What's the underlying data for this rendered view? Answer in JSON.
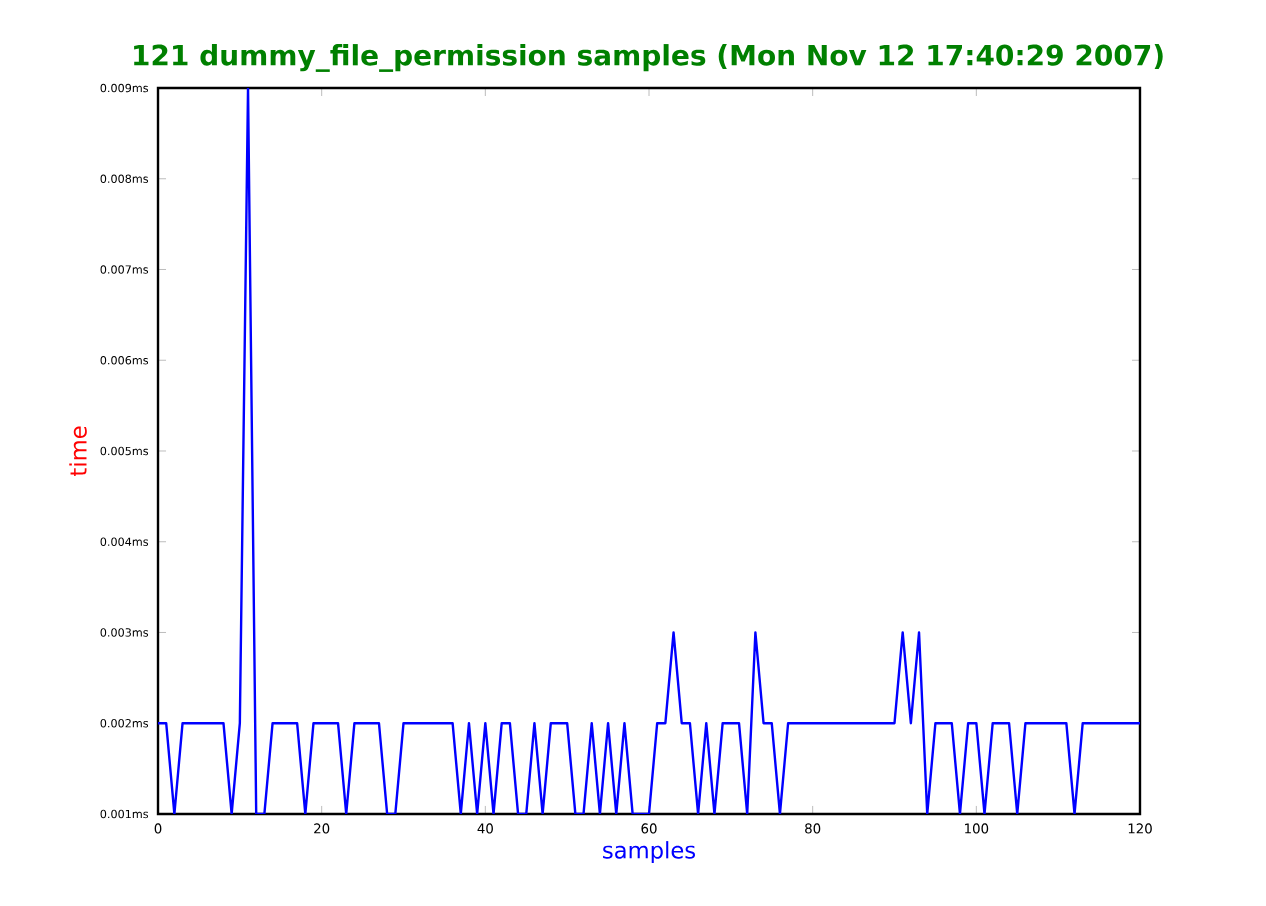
{
  "chart_data": {
    "type": "line",
    "title": "121 dummy_file_permission samples (Mon Nov 12 17:40:29 2007)",
    "xlabel": "samples",
    "ylabel": "time",
    "x": [
      0,
      1,
      2,
      3,
      4,
      5,
      6,
      7,
      8,
      9,
      10,
      11,
      12,
      13,
      14,
      15,
      16,
      17,
      18,
      19,
      20,
      21,
      22,
      23,
      24,
      25,
      26,
      27,
      28,
      29,
      30,
      31,
      32,
      33,
      34,
      35,
      36,
      37,
      38,
      39,
      40,
      41,
      42,
      43,
      44,
      45,
      46,
      47,
      48,
      49,
      50,
      51,
      52,
      53,
      54,
      55,
      56,
      57,
      58,
      59,
      60,
      61,
      62,
      63,
      64,
      65,
      66,
      67,
      68,
      69,
      70,
      71,
      72,
      73,
      74,
      75,
      76,
      77,
      78,
      79,
      80,
      81,
      82,
      83,
      84,
      85,
      86,
      87,
      88,
      89,
      90,
      91,
      92,
      93,
      94,
      95,
      96,
      97,
      98,
      99,
      100,
      101,
      102,
      103,
      104,
      105,
      106,
      107,
      108,
      109,
      110,
      111,
      112,
      113,
      114,
      115,
      116,
      117,
      118,
      119,
      120
    ],
    "series": [
      {
        "color": "#0000ff",
        "values": [
          0.002,
          0.002,
          0.001,
          0.002,
          0.002,
          0.002,
          0.002,
          0.002,
          0.002,
          0.001,
          0.002,
          0.009,
          0.001,
          0.001,
          0.002,
          0.002,
          0.002,
          0.002,
          0.001,
          0.002,
          0.002,
          0.002,
          0.002,
          0.001,
          0.002,
          0.002,
          0.002,
          0.002,
          0.001,
          0.001,
          0.002,
          0.002,
          0.002,
          0.002,
          0.002,
          0.002,
          0.002,
          0.001,
          0.002,
          0.001,
          0.002,
          0.001,
          0.002,
          0.002,
          0.001,
          0.001,
          0.002,
          0.001,
          0.002,
          0.002,
          0.002,
          0.001,
          0.001,
          0.002,
          0.001,
          0.002,
          0.001,
          0.002,
          0.001,
          0.001,
          0.001,
          0.002,
          0.002,
          0.003,
          0.002,
          0.002,
          0.001,
          0.002,
          0.001,
          0.002,
          0.002,
          0.002,
          0.001,
          0.003,
          0.002,
          0.002,
          0.001,
          0.002,
          0.002,
          0.002,
          0.002,
          0.002,
          0.002,
          0.002,
          0.002,
          0.002,
          0.002,
          0.002,
          0.002,
          0.002,
          0.002,
          0.003,
          0.002,
          0.003,
          0.001,
          0.002,
          0.002,
          0.002,
          0.001,
          0.002,
          0.002,
          0.001,
          0.002,
          0.002,
          0.002,
          0.001,
          0.002,
          0.002,
          0.002,
          0.002,
          0.002,
          0.002,
          0.001,
          0.002,
          0.002,
          0.002,
          0.002,
          0.002,
          0.002,
          0.002,
          0.002
        ]
      }
    ],
    "xlim": [
      0,
      120
    ],
    "xticks": [
      0,
      20,
      40,
      60,
      80,
      100,
      120
    ],
    "ylim": [
      0.001,
      0.009
    ],
    "yticks": [
      {
        "value": 0.001,
        "label": "0.001ms"
      },
      {
        "value": 0.002,
        "label": "0.002ms"
      },
      {
        "value": 0.003,
        "label": "0.003ms"
      },
      {
        "value": 0.004,
        "label": "0.004ms"
      },
      {
        "value": 0.005,
        "label": "0.005ms"
      },
      {
        "value": 0.006,
        "label": "0.006ms"
      },
      {
        "value": 0.007,
        "label": "0.007ms"
      },
      {
        "value": 0.008,
        "label": "0.008ms"
      },
      {
        "value": 0.009,
        "label": "0.009ms"
      }
    ]
  }
}
